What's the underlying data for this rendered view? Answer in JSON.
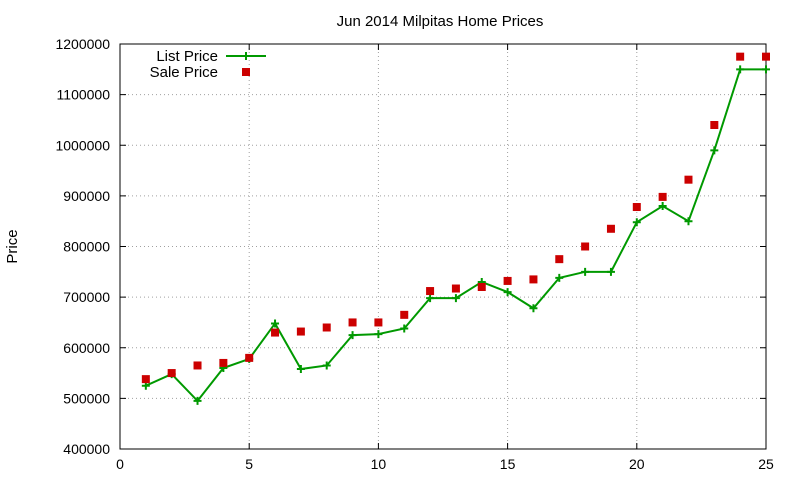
{
  "chart_data": {
    "type": "line",
    "title": "Jun 2014 Milpitas Home Prices",
    "xlabel": "",
    "ylabel": "Price",
    "xlim": [
      0,
      25
    ],
    "ylim": [
      400000,
      1200000
    ],
    "x_ticks": [
      0,
      5,
      10,
      15,
      20,
      25
    ],
    "y_ticks": [
      400000,
      500000,
      600000,
      700000,
      800000,
      900000,
      1000000,
      1100000,
      1200000
    ],
    "grid": true,
    "legend_position": "top-left",
    "x": [
      1,
      2,
      3,
      4,
      5,
      6,
      7,
      8,
      9,
      10,
      11,
      12,
      13,
      14,
      15,
      16,
      17,
      18,
      19,
      20,
      21,
      22,
      23,
      24,
      25
    ],
    "series": [
      {
        "name": "List Price",
        "style": "linespoints",
        "marker": "plus",
        "color": "#009900",
        "values": [
          525000,
          548000,
          495000,
          560000,
          578000,
          648000,
          558000,
          565000,
          625000,
          627000,
          638000,
          698000,
          698000,
          730000,
          710000,
          678000,
          738000,
          750000,
          750000,
          848000,
          880000,
          850000,
          990000,
          1150000,
          1150000
        ]
      },
      {
        "name": "Sale Price",
        "style": "points",
        "marker": "square",
        "color": "#cc0000",
        "values": [
          538000,
          550000,
          565000,
          570000,
          580000,
          630000,
          632000,
          640000,
          650000,
          650000,
          665000,
          712000,
          717000,
          720000,
          732000,
          735000,
          775000,
          800000,
          835000,
          878000,
          898000,
          932000,
          1040000,
          1175000,
          1175000
        ]
      }
    ]
  }
}
